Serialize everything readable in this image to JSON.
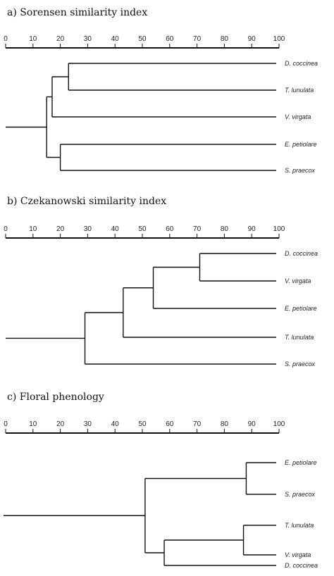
{
  "figure": {
    "axis_ticks": [
      "0",
      "10",
      "20",
      "30",
      "40",
      "50",
      "60",
      "70",
      "80",
      "90",
      "100"
    ],
    "panels": [
      {
        "id": "a",
        "title": "a) Sorensen similarity index",
        "leaves": [
          {
            "label": "D. coccinea"
          },
          {
            "label": "T. lunulata"
          },
          {
            "label": "V. virgata"
          },
          {
            "label": "E. petiolare"
          },
          {
            "label": "S. praecox"
          }
        ],
        "nodes": [
          {
            "id": "n1",
            "value": 23,
            "children": [
              "leaf:0",
              "leaf:1"
            ]
          },
          {
            "id": "n2",
            "value": 17,
            "children": [
              "node:n1",
              "leaf:2"
            ]
          },
          {
            "id": "n3",
            "value": 20,
            "children": [
              "leaf:3",
              "leaf:4"
            ]
          },
          {
            "id": "root",
            "value": 15,
            "children": [
              "node:n2",
              "node:n3"
            ]
          }
        ]
      },
      {
        "id": "b",
        "title": "b) Czekanowski similarity index",
        "leaves": [
          {
            "label": "D. coccinea"
          },
          {
            "label": "V. virgata"
          },
          {
            "label": "E. petiolare"
          },
          {
            "label": "T. lunulata"
          },
          {
            "label": "S. praecox"
          }
        ],
        "nodes": [
          {
            "id": "n1",
            "value": 71,
            "children": [
              "leaf:0",
              "leaf:1"
            ]
          },
          {
            "id": "n2",
            "value": 54,
            "children": [
              "node:n1",
              "leaf:2"
            ]
          },
          {
            "id": "n3",
            "value": 43,
            "children": [
              "node:n2",
              "leaf:3"
            ]
          },
          {
            "id": "root",
            "value": 29,
            "children": [
              "node:n3",
              "leaf:4"
            ]
          }
        ]
      },
      {
        "id": "c",
        "title": "c) Floral phenology",
        "leaves": [
          {
            "label": "E. petiolare"
          },
          {
            "label": "S. praecox"
          },
          {
            "label": "T. lunulata"
          },
          {
            "label": "V. virgata"
          },
          {
            "label": "D. coccinea"
          }
        ],
        "nodes": [
          {
            "id": "n1",
            "value": 88,
            "children": [
              "leaf:0",
              "leaf:1"
            ]
          },
          {
            "id": "n2",
            "value": 87,
            "children": [
              "leaf:2",
              "leaf:3"
            ]
          },
          {
            "id": "n3",
            "value": 58,
            "children": [
              "node:n2",
              "leaf:4"
            ]
          },
          {
            "id": "root",
            "value": 51,
            "children": [
              "node:n1",
              "node:n3"
            ]
          }
        ]
      }
    ]
  }
}
